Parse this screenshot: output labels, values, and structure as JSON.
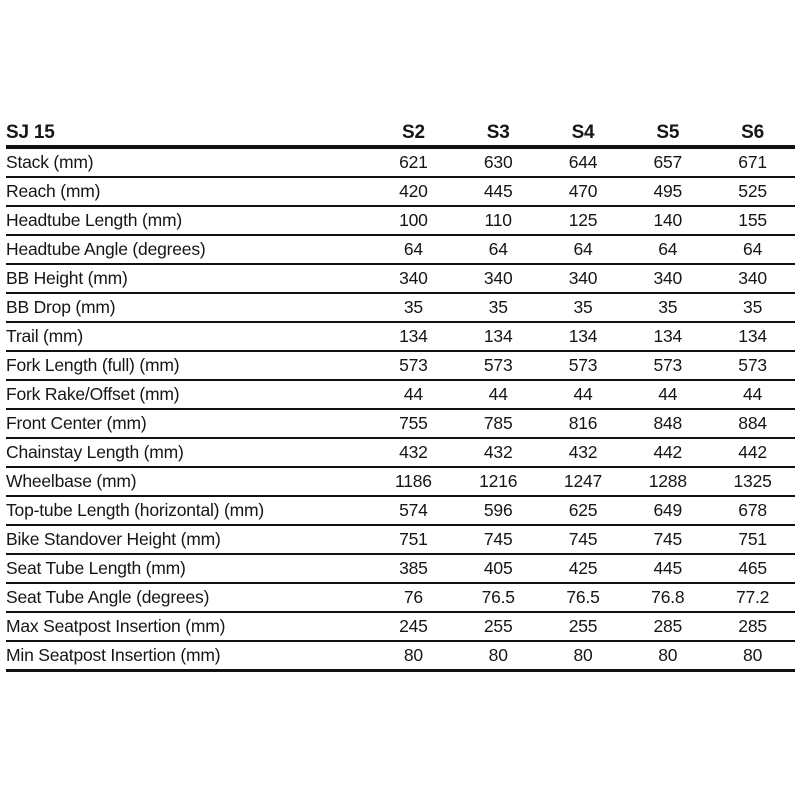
{
  "chart_data": {
    "type": "table",
    "title": "SJ 15",
    "columns": [
      "S2",
      "S3",
      "S4",
      "S5",
      "S6"
    ],
    "rows": [
      {
        "label": "Stack (mm)",
        "values": [
          "621",
          "630",
          "644",
          "657",
          "671"
        ]
      },
      {
        "label": "Reach (mm)",
        "values": [
          "420",
          "445",
          "470",
          "495",
          "525"
        ]
      },
      {
        "label": "Headtube Length (mm)",
        "values": [
          "100",
          "110",
          "125",
          "140",
          "155"
        ]
      },
      {
        "label": "Headtube Angle (degrees)",
        "values": [
          "64",
          "64",
          "64",
          "64",
          "64"
        ]
      },
      {
        "label": "BB Height (mm)",
        "values": [
          "340",
          "340",
          "340",
          "340",
          "340"
        ]
      },
      {
        "label": "BB Drop (mm)",
        "values": [
          "35",
          "35",
          "35",
          "35",
          "35"
        ]
      },
      {
        "label": "Trail (mm)",
        "values": [
          "134",
          "134",
          "134",
          "134",
          "134"
        ]
      },
      {
        "label": "Fork Length (full) (mm)",
        "values": [
          "573",
          "573",
          "573",
          "573",
          "573"
        ]
      },
      {
        "label": "Fork Rake/Offset (mm)",
        "values": [
          "44",
          "44",
          "44",
          "44",
          "44"
        ]
      },
      {
        "label": "Front Center (mm)",
        "values": [
          "755",
          "785",
          "816",
          "848",
          "884"
        ]
      },
      {
        "label": "Chainstay Length (mm)",
        "values": [
          "432",
          "432",
          "432",
          "442",
          "442"
        ]
      },
      {
        "label": "Wheelbase (mm)",
        "values": [
          "1186",
          "1216",
          "1247",
          "1288",
          "1325"
        ]
      },
      {
        "label": "Top-tube Length (horizontal) (mm)",
        "values": [
          "574",
          "596",
          "625",
          "649",
          "678"
        ]
      },
      {
        "label": "Bike Standover Height (mm)",
        "values": [
          "751",
          "745",
          "745",
          "745",
          "751"
        ]
      },
      {
        "label": "Seat Tube Length (mm)",
        "values": [
          "385",
          "405",
          "425",
          "445",
          "465"
        ]
      },
      {
        "label": "Seat Tube Angle (degrees)",
        "values": [
          "76",
          "76.5",
          "76.5",
          "76.8",
          "77.2"
        ]
      },
      {
        "label": "Max Seatpost Insertion (mm)",
        "values": [
          "245",
          "255",
          "255",
          "285",
          "285"
        ]
      },
      {
        "label": "Min Seatpost Insertion (mm)",
        "values": [
          "80",
          "80",
          "80",
          "80",
          "80"
        ]
      }
    ],
    "layout": {
      "grid": "horizontal-rules-only",
      "header_rule_weight": "thick",
      "row_rule_weight": "thin"
    }
  },
  "colors": {
    "background": "#ffffff",
    "text": "#161616",
    "rule": "#111111"
  }
}
